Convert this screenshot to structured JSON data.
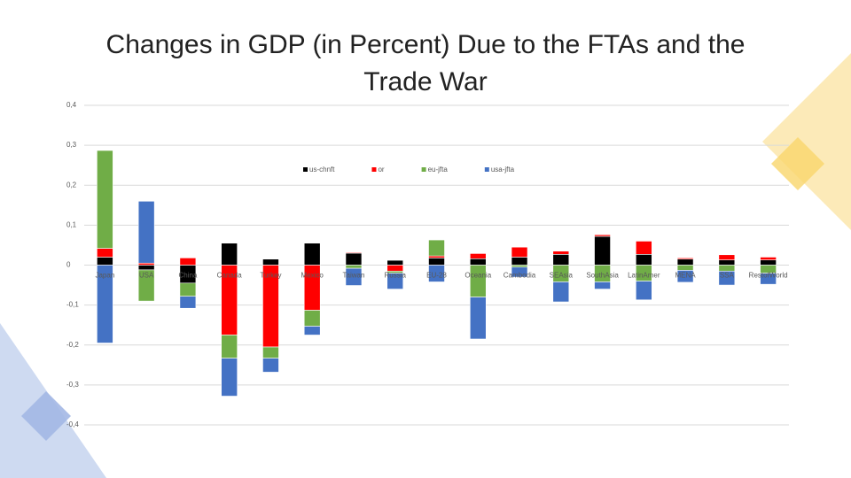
{
  "chart_data": {
    "type": "bar",
    "stacked": true,
    "title": "Changes in GDP (in Percent) Due to the FTAs and the Trade War",
    "categories": [
      "Japan",
      "USA",
      "China",
      "Canada",
      "Turkey",
      "Mexico",
      "Taiwan",
      "Russia",
      "EU-28",
      "Oceania",
      "Cambodia",
      "SEAsia",
      "SouthAsia",
      "LatinAmer",
      "MENA",
      "SSA",
      "RestofWorld"
    ],
    "series": [
      {
        "name": "us-chnft",
        "color": "#000000",
        "values": [
          0.02,
          -0.012,
          -0.045,
          0.055,
          0.015,
          0.055,
          0.03,
          0.012,
          0.018,
          0.016,
          0.02,
          0.027,
          0.072,
          0.027,
          0.015,
          0.013,
          0.013
        ]
      },
      {
        "name": "or",
        "color": "#ff0000",
        "values": [
          0.022,
          0.005,
          0.018,
          -0.175,
          -0.205,
          -0.113,
          0.002,
          -0.015,
          0.005,
          0.013,
          0.025,
          0.008,
          0.004,
          0.033,
          0.003,
          0.013,
          0.007
        ]
      },
      {
        "name": "eu-jfta",
        "color": "#70ad47",
        "values": [
          0.245,
          -0.078,
          -0.033,
          -0.058,
          -0.028,
          -0.04,
          -0.008,
          -0.005,
          0.04,
          -0.08,
          -0.005,
          -0.042,
          -0.042,
          -0.04,
          -0.013,
          -0.015,
          -0.02
        ]
      },
      {
        "name": "usa-jfta",
        "color": "#4472c4",
        "values": [
          -0.195,
          0.155,
          -0.03,
          -0.095,
          -0.035,
          -0.022,
          -0.043,
          -0.04,
          -0.042,
          -0.105,
          -0.025,
          -0.05,
          -0.018,
          -0.047,
          -0.03,
          -0.035,
          -0.028
        ]
      }
    ],
    "ylim": [
      -0.4,
      0.4
    ],
    "yticks": [
      {
        "value": -0.4,
        "label": "-0,4"
      },
      {
        "value": -0.3,
        "label": "-0,3"
      },
      {
        "value": -0.2,
        "label": "-0,2"
      },
      {
        "value": -0.1,
        "label": "-0,1"
      },
      0,
      {
        "value": 0.1,
        "label": "0,1"
      },
      {
        "value": 0.2,
        "label": "0,2"
      },
      {
        "value": 0.3,
        "label": "0,3"
      },
      {
        "value": 0.4,
        "label": "0,4"
      }
    ],
    "grid": true,
    "legend": "top"
  }
}
